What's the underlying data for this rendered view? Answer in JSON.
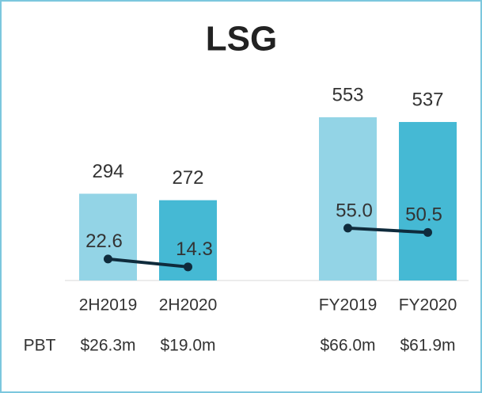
{
  "chart_data": {
    "type": "bar",
    "title": "LSG",
    "categories": [
      "2H2019",
      "2H2020",
      null,
      "FY2019",
      "FY2020"
    ],
    "ylim": [
      0,
      600
    ],
    "y2lim": [
      0,
      186
    ],
    "series": [
      {
        "type": "bar",
        "colors": [
          "#93d4e6",
          "#45b9d4",
          null,
          "#93d4e6",
          "#45b9d4"
        ],
        "values": [
          294,
          272,
          null,
          553,
          537
        ]
      },
      {
        "type": "line",
        "axis": "y2",
        "color": "#0f2b3c",
        "values": [
          22.6,
          14.3,
          null,
          55.0,
          50.5
        ],
        "value_labels": [
          "22.6",
          "14.3",
          null,
          "55.0",
          "50.5"
        ]
      }
    ],
    "pbt": {
      "label": "PBT",
      "values": [
        "$26.3m",
        "$19.0m",
        null,
        "$66.0m",
        "$61.9m"
      ]
    }
  }
}
